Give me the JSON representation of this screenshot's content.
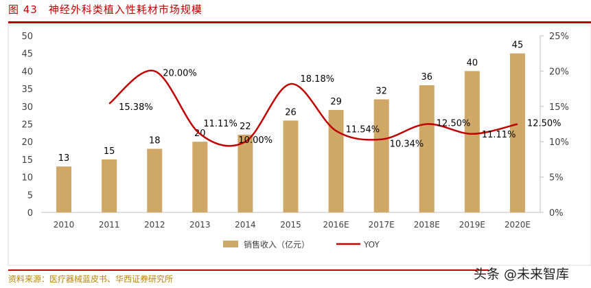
{
  "header": {
    "figure_number": "图 43",
    "title": "神经外科类植入性耗材市场规模"
  },
  "footer": {
    "source": "资料来源：医疗器械蓝皮书、华西证券研究所",
    "watermark": "头条 @未来智库"
  },
  "chart_data": {
    "type": "bar+line",
    "categories": [
      "2010",
      "2011",
      "2012",
      "2013",
      "2014",
      "2015",
      "2016E",
      "2017E",
      "2018E",
      "2019E",
      "2020E"
    ],
    "series": [
      {
        "name": "销售收入（亿元）",
        "type": "bar",
        "axis": "left",
        "color": "#cfa867",
        "values": [
          13,
          15,
          18,
          20,
          22,
          26,
          29,
          32,
          36,
          40,
          45
        ],
        "labels": [
          "13",
          "15",
          "18",
          "20",
          "22",
          "26",
          "29",
          "32",
          "36",
          "40",
          "45"
        ]
      },
      {
        "name": "YOY",
        "type": "line",
        "axis": "right",
        "color": "#c00000",
        "values": [
          null,
          15.38,
          20.0,
          11.11,
          10.0,
          18.18,
          11.54,
          10.34,
          12.5,
          11.11,
          12.5
        ],
        "labels": [
          "",
          "15.38%",
          "20.00%",
          "11.11%",
          "10.00%",
          "18.18%",
          "11.54%",
          "10.34%",
          "12.50%",
          "11.11%",
          "12.50%"
        ]
      }
    ],
    "left_axis": {
      "ylim": [
        0,
        50
      ],
      "ticks": [
        "0",
        "5",
        "10",
        "15",
        "20",
        "25",
        "30",
        "35",
        "40",
        "45",
        "50"
      ]
    },
    "right_axis": {
      "ylim": [
        0,
        25
      ],
      "ticks": [
        "0%",
        "5%",
        "10%",
        "15%",
        "20%",
        "25%"
      ]
    },
    "legend": "bottom",
    "grid": false
  }
}
